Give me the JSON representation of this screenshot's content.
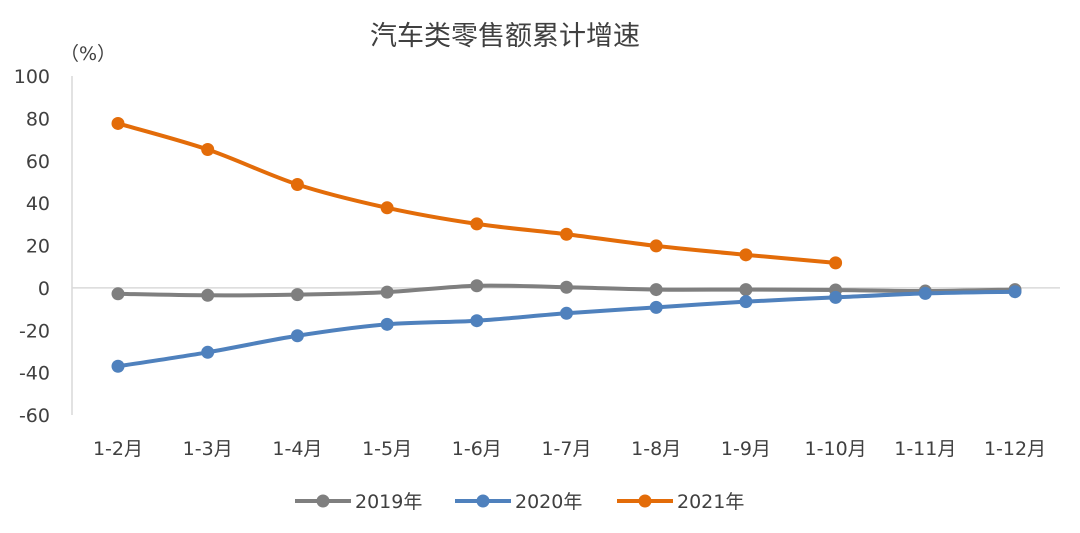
{
  "chart_data": {
    "type": "line",
    "title": "汽车类零售额累计增速",
    "ylabel": "（%）",
    "xlabel": "",
    "ylim": [
      -60,
      100
    ],
    "yticks": [
      -60,
      -40,
      -20,
      0,
      20,
      40,
      60,
      80,
      100
    ],
    "ytick_labels": [
      "-60",
      "-40",
      "-20",
      "0",
      "20",
      "40",
      "60",
      "80",
      "100"
    ],
    "categories": [
      "1-2月",
      "1-3月",
      "1-4月",
      "1-5月",
      "1-6月",
      "1-7月",
      "1-8月",
      "1-9月",
      "1-10月",
      "1-11月",
      "1-12月"
    ],
    "grid": false,
    "legend_position": "bottom",
    "series": [
      {
        "name": "2019年",
        "color": "#7f7f7f",
        "values": [
          -2.8,
          -3.5,
          -3.2,
          -2.0,
          1.0,
          0.3,
          -0.8,
          -0.8,
          -1.0,
          -1.5,
          -0.8
        ]
      },
      {
        "name": "2020年",
        "color": "#4f81bd",
        "values": [
          -37.0,
          -30.4,
          -22.6,
          -17.2,
          -15.5,
          -12.0,
          -9.2,
          -6.5,
          -4.5,
          -2.6,
          -1.8
        ]
      },
      {
        "name": "2021年",
        "color": "#e36c09",
        "values": [
          77.6,
          65.3,
          48.8,
          37.8,
          30.2,
          25.3,
          19.8,
          15.6,
          11.8,
          null,
          null
        ]
      }
    ]
  }
}
